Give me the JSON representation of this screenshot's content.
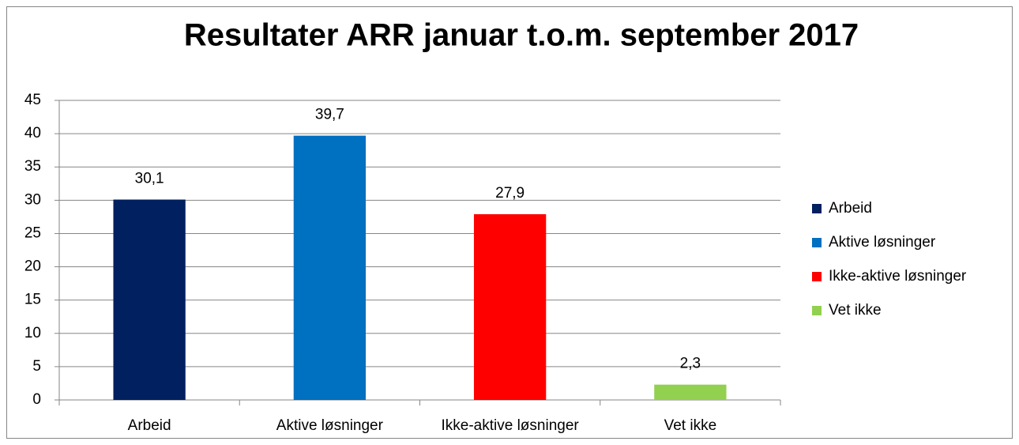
{
  "chart_data": {
    "type": "bar",
    "title": "Resultater ARR januar t.o.m. september 2017",
    "categories": [
      "Arbeid",
      "Aktive løsninger",
      "Ikke-aktive løsninger",
      "Vet ikke"
    ],
    "values": [
      30.1,
      39.7,
      27.9,
      2.3
    ],
    "value_labels": [
      "30,1",
      "39,7",
      "27,9",
      "2,3"
    ],
    "colors": [
      "#002060",
      "#0070c0",
      "#ff0000",
      "#92d050"
    ],
    "ylim": [
      0,
      45
    ],
    "yticks": [
      0,
      5,
      10,
      15,
      20,
      25,
      30,
      35,
      40,
      45
    ],
    "grid": true,
    "legend": "right"
  }
}
